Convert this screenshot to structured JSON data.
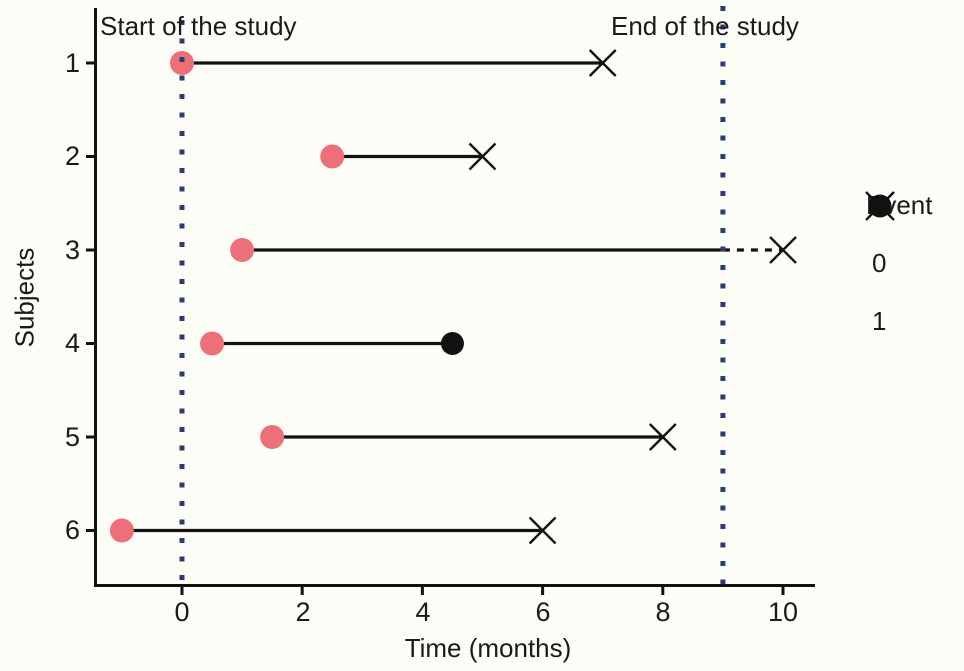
{
  "figure": {
    "background": "#fdfdf8",
    "annotations": {
      "start_label": "Start of the study",
      "end_label": "End of the study"
    },
    "legend": {
      "title": "Event",
      "items": [
        {
          "marker": "filled-circle-icon",
          "label": "0"
        },
        {
          "marker": "cross-icon",
          "label": "1"
        }
      ]
    }
  },
  "chart_data": {
    "type": "scatter",
    "title": "",
    "xlabel": "Time (months)",
    "ylabel": "Subjects",
    "x_ticks": [
      "0",
      "2",
      "4",
      "6",
      "8",
      "10"
    ],
    "y_ticks": [
      "1",
      "2",
      "3",
      "4",
      "5",
      "6"
    ],
    "xlim": [
      -1.45,
      10.5
    ],
    "grid": false,
    "legend_position": "right",
    "study_start": {
      "x": 0
    },
    "study_end": {
      "x": 9
    },
    "subjects": [
      {
        "id": 1,
        "entry": 0,
        "exit": 7,
        "event": 1
      },
      {
        "id": 2,
        "entry": 2.5,
        "exit": 5,
        "event": 1
      },
      {
        "id": 3,
        "entry": 1,
        "exit": 10,
        "event": 1,
        "dashed_from": 9
      },
      {
        "id": 4,
        "entry": 0.5,
        "exit": 4.5,
        "event": 0
      },
      {
        "id": 5,
        "entry": 1.5,
        "exit": 8,
        "event": 1
      },
      {
        "id": 6,
        "entry": -1,
        "exit": 6,
        "event": 1
      }
    ],
    "colors": {
      "entry_dot": "#ed6f78",
      "event_line": "#121212",
      "study_boundary": "#2d3c73"
    }
  }
}
